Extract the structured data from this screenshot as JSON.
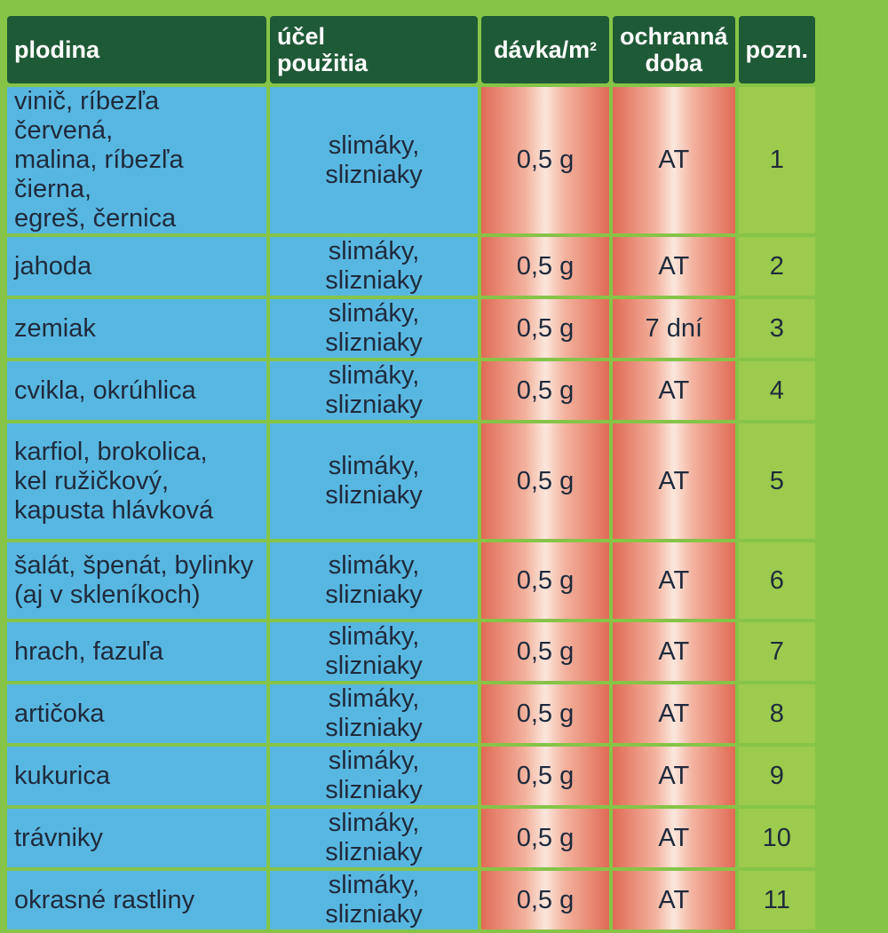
{
  "headers": {
    "crop": "plodina",
    "use_line1": "účel",
    "use_line2": "použitia",
    "dose_main": "dávka/m",
    "dose_sup": "2",
    "protection_line1": "ochranná",
    "protection_line2": "doba",
    "note": "pozn."
  },
  "rows": [
    {
      "crop": [
        "vinič, ríbezľa červená,",
        "malina, ríbezľa čierna,",
        "egreš, černica"
      ],
      "use": "slimáky, slizniaky",
      "dose": "0,5 g",
      "protection": "AT",
      "note": "1"
    },
    {
      "crop": [
        "jahoda"
      ],
      "use": "slimáky, slizniaky",
      "dose": "0,5 g",
      "protection": "AT",
      "note": "2"
    },
    {
      "crop": [
        "zemiak"
      ],
      "use": "slimáky, slizniaky",
      "dose": "0,5 g",
      "protection": "7 dní",
      "note": "3"
    },
    {
      "crop": [
        "cvikla, okrúhlica"
      ],
      "use": "slimáky, slizniaky",
      "dose": "0,5 g",
      "protection": "AT",
      "note": "4"
    },
    {
      "crop": [
        "karfiol, brokolica,",
        "kel ružičkový,",
        "kapusta hlávková"
      ],
      "use": "slimáky, slizniaky",
      "dose": "0,5 g",
      "protection": "AT",
      "note": "5"
    },
    {
      "crop": [
        "šalát, špenát, bylinky",
        "(aj v skleníkoch)"
      ],
      "use": "slimáky, slizniaky",
      "dose": "0,5 g",
      "protection": "AT",
      "note": "6"
    },
    {
      "crop": [
        "hrach, fazuľa"
      ],
      "use": "slimáky, slizniaky",
      "dose": "0,5 g",
      "protection": "AT",
      "note": "7"
    },
    {
      "crop": [
        "artičoka"
      ],
      "use": "slimáky, slizniaky",
      "dose": "0,5 g",
      "protection": "AT",
      "note": "8"
    },
    {
      "crop": [
        "kukurica"
      ],
      "use": "slimáky, slizniaky",
      "dose": "0,5 g",
      "protection": "AT",
      "note": "9"
    },
    {
      "crop": [
        "trávniky"
      ],
      "use": "slimáky, slizniaky",
      "dose": "0,5 g",
      "protection": "AT",
      "note": "10"
    },
    {
      "crop": [
        "okrasné rastliny"
      ],
      "use": "slimáky, slizniaky",
      "dose": "0,5 g",
      "protection": "AT",
      "note": "11"
    }
  ]
}
